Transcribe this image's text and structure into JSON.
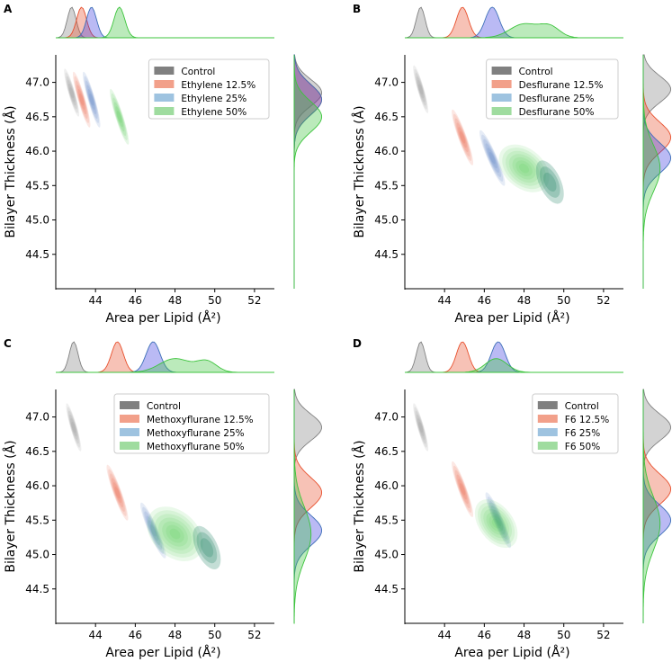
{
  "colors": {
    "control": "#808080",
    "s1": "#e8502d",
    "s2": "#3d6fb8",
    "s2_fill": "#3a3ae0",
    "s3": "#3cc43c",
    "axis": "#000000"
  },
  "chart_data": [
    {
      "panel_label": "A",
      "type": "kde_joint",
      "xlabel": "Area per Lipid (Å²)",
      "ylabel": "Bilayer Thickness (Å)",
      "xlim": [
        42,
        53
      ],
      "ylim": [
        44,
        47.4
      ],
      "xticks": [
        "44",
        "46",
        "48",
        "50",
        "52"
      ],
      "yticks": [
        "44.5",
        "45.0",
        "45.5",
        "46.0",
        "46.5",
        "47.0"
      ],
      "series": [
        {
          "name": "Control",
          "key": "control",
          "mx": 42.8,
          "my": 46.85,
          "sx": 0.17,
          "sy": 0.17,
          "rho": -0.85
        },
        {
          "name": "Ethylene 12.5%",
          "key": "s1",
          "mx": 43.3,
          "my": 46.75,
          "sx": 0.2,
          "sy": 0.2,
          "rho": -0.85
        },
        {
          "name": "Ethylene 25%",
          "key": "s2",
          "mx": 43.8,
          "my": 46.75,
          "sx": 0.2,
          "sy": 0.2,
          "rho": -0.85
        },
        {
          "name": "Ethylene 50%",
          "key": "s3",
          "mx": 45.2,
          "my": 46.5,
          "sx": 0.22,
          "sy": 0.2,
          "rho": -0.85
        }
      ]
    },
    {
      "panel_label": "B",
      "type": "kde_joint",
      "xlabel": "Area per Lipid (Å²)",
      "ylabel": "Bilayer Thickness (Å)",
      "xlim": [
        42,
        53
      ],
      "ylim": [
        44,
        47.4
      ],
      "xticks": [
        "44",
        "46",
        "48",
        "50",
        "52"
      ],
      "yticks": [
        "44.5",
        "45.0",
        "45.5",
        "46.0",
        "46.5",
        "47.0"
      ],
      "series": [
        {
          "name": "Control",
          "key": "control",
          "mx": 42.8,
          "my": 46.9,
          "sx": 0.17,
          "sy": 0.17,
          "rho": -0.85
        },
        {
          "name": "Desflurane 12.5%",
          "key": "s1",
          "mx": 44.9,
          "my": 46.2,
          "sx": 0.25,
          "sy": 0.2,
          "rho": -0.85
        },
        {
          "name": "Desflurane 25%",
          "key": "s2",
          "mx": 46.4,
          "my": 45.9,
          "sx": 0.3,
          "sy": 0.2,
          "rho": -0.85
        },
        {
          "name": "Desflurane 50%",
          "key": "s3",
          "mx": 48.0,
          "my": 45.75,
          "sx": 1.2,
          "sy": 0.3,
          "rho": -0.75,
          "peak_x": 49.3,
          "peak_y": 45.55
        }
      ]
    },
    {
      "panel_label": "C",
      "type": "kde_joint",
      "xlabel": "Area per Lipid (Å²)",
      "ylabel": "Bilayer Thickness (Å)",
      "xlim": [
        42,
        53
      ],
      "ylim": [
        44,
        47.4
      ],
      "xticks": [
        "44",
        "46",
        "48",
        "50",
        "52"
      ],
      "yticks": [
        "44.5",
        "45.0",
        "45.5",
        "46.0",
        "46.5",
        "47.0"
      ],
      "series": [
        {
          "name": "Control",
          "key": "control",
          "mx": 42.9,
          "my": 46.85,
          "sx": 0.17,
          "sy": 0.17,
          "rho": -0.85
        },
        {
          "name": "Methoxyflurane 12.5%",
          "key": "s1",
          "mx": 45.1,
          "my": 45.9,
          "sx": 0.25,
          "sy": 0.2,
          "rho": -0.85
        },
        {
          "name": "Methoxyflurane 25%",
          "key": "s2",
          "mx": 46.9,
          "my": 45.35,
          "sx": 0.3,
          "sy": 0.2,
          "rho": -0.85
        },
        {
          "name": "Methoxyflurane 50%",
          "key": "s3",
          "mx": 48.0,
          "my": 45.3,
          "sx": 1.3,
          "sy": 0.35,
          "rho": -0.75,
          "peak_x": 49.6,
          "peak_y": 45.1
        }
      ]
    },
    {
      "panel_label": "D",
      "type": "kde_joint",
      "xlabel": "Area per Lipid (Å²)",
      "ylabel": "Bilayer Thickness (Å)",
      "xlim": [
        42,
        53
      ],
      "ylim": [
        44,
        47.4
      ],
      "xticks": [
        "44",
        "46",
        "48",
        "50",
        "52"
      ],
      "yticks": [
        "44.5",
        "45.0",
        "45.5",
        "46.0",
        "46.5",
        "47.0"
      ],
      "series": [
        {
          "name": "Control",
          "key": "control",
          "mx": 42.8,
          "my": 46.85,
          "sx": 0.17,
          "sy": 0.17,
          "rho": -0.85
        },
        {
          "name": "F6 12.5%",
          "key": "s1",
          "mx": 44.9,
          "my": 45.95,
          "sx": 0.25,
          "sy": 0.2,
          "rho": -0.85
        },
        {
          "name": "F6 25%",
          "key": "s2",
          "mx": 46.7,
          "my": 45.5,
          "sx": 0.3,
          "sy": 0.2,
          "rho": -0.85
        },
        {
          "name": "F6 50%",
          "key": "s3",
          "mx": 46.6,
          "my": 45.45,
          "sx": 0.9,
          "sy": 0.35,
          "rho": -0.9
        }
      ]
    }
  ]
}
